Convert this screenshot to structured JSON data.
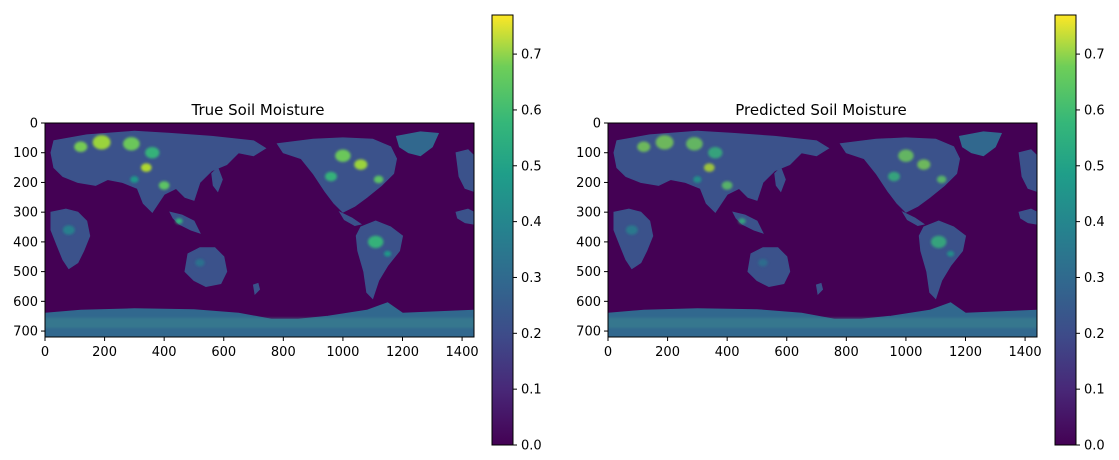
{
  "chart_data": [
    {
      "type": "heatmap",
      "title": "True Soil Moisture",
      "xlabel": "",
      "ylabel": "",
      "x_ticks": [
        0,
        200,
        400,
        600,
        800,
        1000,
        1200,
        1400
      ],
      "y_ticks": [
        0,
        100,
        200,
        300,
        400,
        500,
        600,
        700
      ],
      "xlim": [
        0,
        1440
      ],
      "ylim": [
        720,
        0
      ],
      "colormap": "viridis",
      "colorbar": {
        "vmin": 0.0,
        "vmax": 0.77,
        "ticks": [
          "0.0",
          "0.1",
          "0.2",
          "0.3",
          "0.4",
          "0.5",
          "0.6",
          "0.7"
        ]
      }
    },
    {
      "type": "heatmap",
      "title": "Predicted Soil Moisture",
      "xlabel": "",
      "ylabel": "",
      "x_ticks": [
        0,
        200,
        400,
        600,
        800,
        1000,
        1200,
        1400
      ],
      "y_ticks": [
        0,
        100,
        200,
        300,
        400,
        500,
        600,
        700
      ],
      "xlim": [
        0,
        1440
      ],
      "ylim": [
        720,
        0
      ],
      "colormap": "viridis",
      "colorbar": {
        "vmin": 0.0,
        "vmax": 0.77,
        "ticks": [
          "0.0",
          "0.1",
          "0.2",
          "0.3",
          "0.4",
          "0.5",
          "0.6",
          "0.7"
        ]
      }
    }
  ],
  "colors": {
    "ocean": "#440154",
    "land_low": "#3b528b",
    "land_mid": "#21918c",
    "land_high": "#5ec962",
    "land_peak": "#fde725",
    "ice": "#31688e"
  }
}
